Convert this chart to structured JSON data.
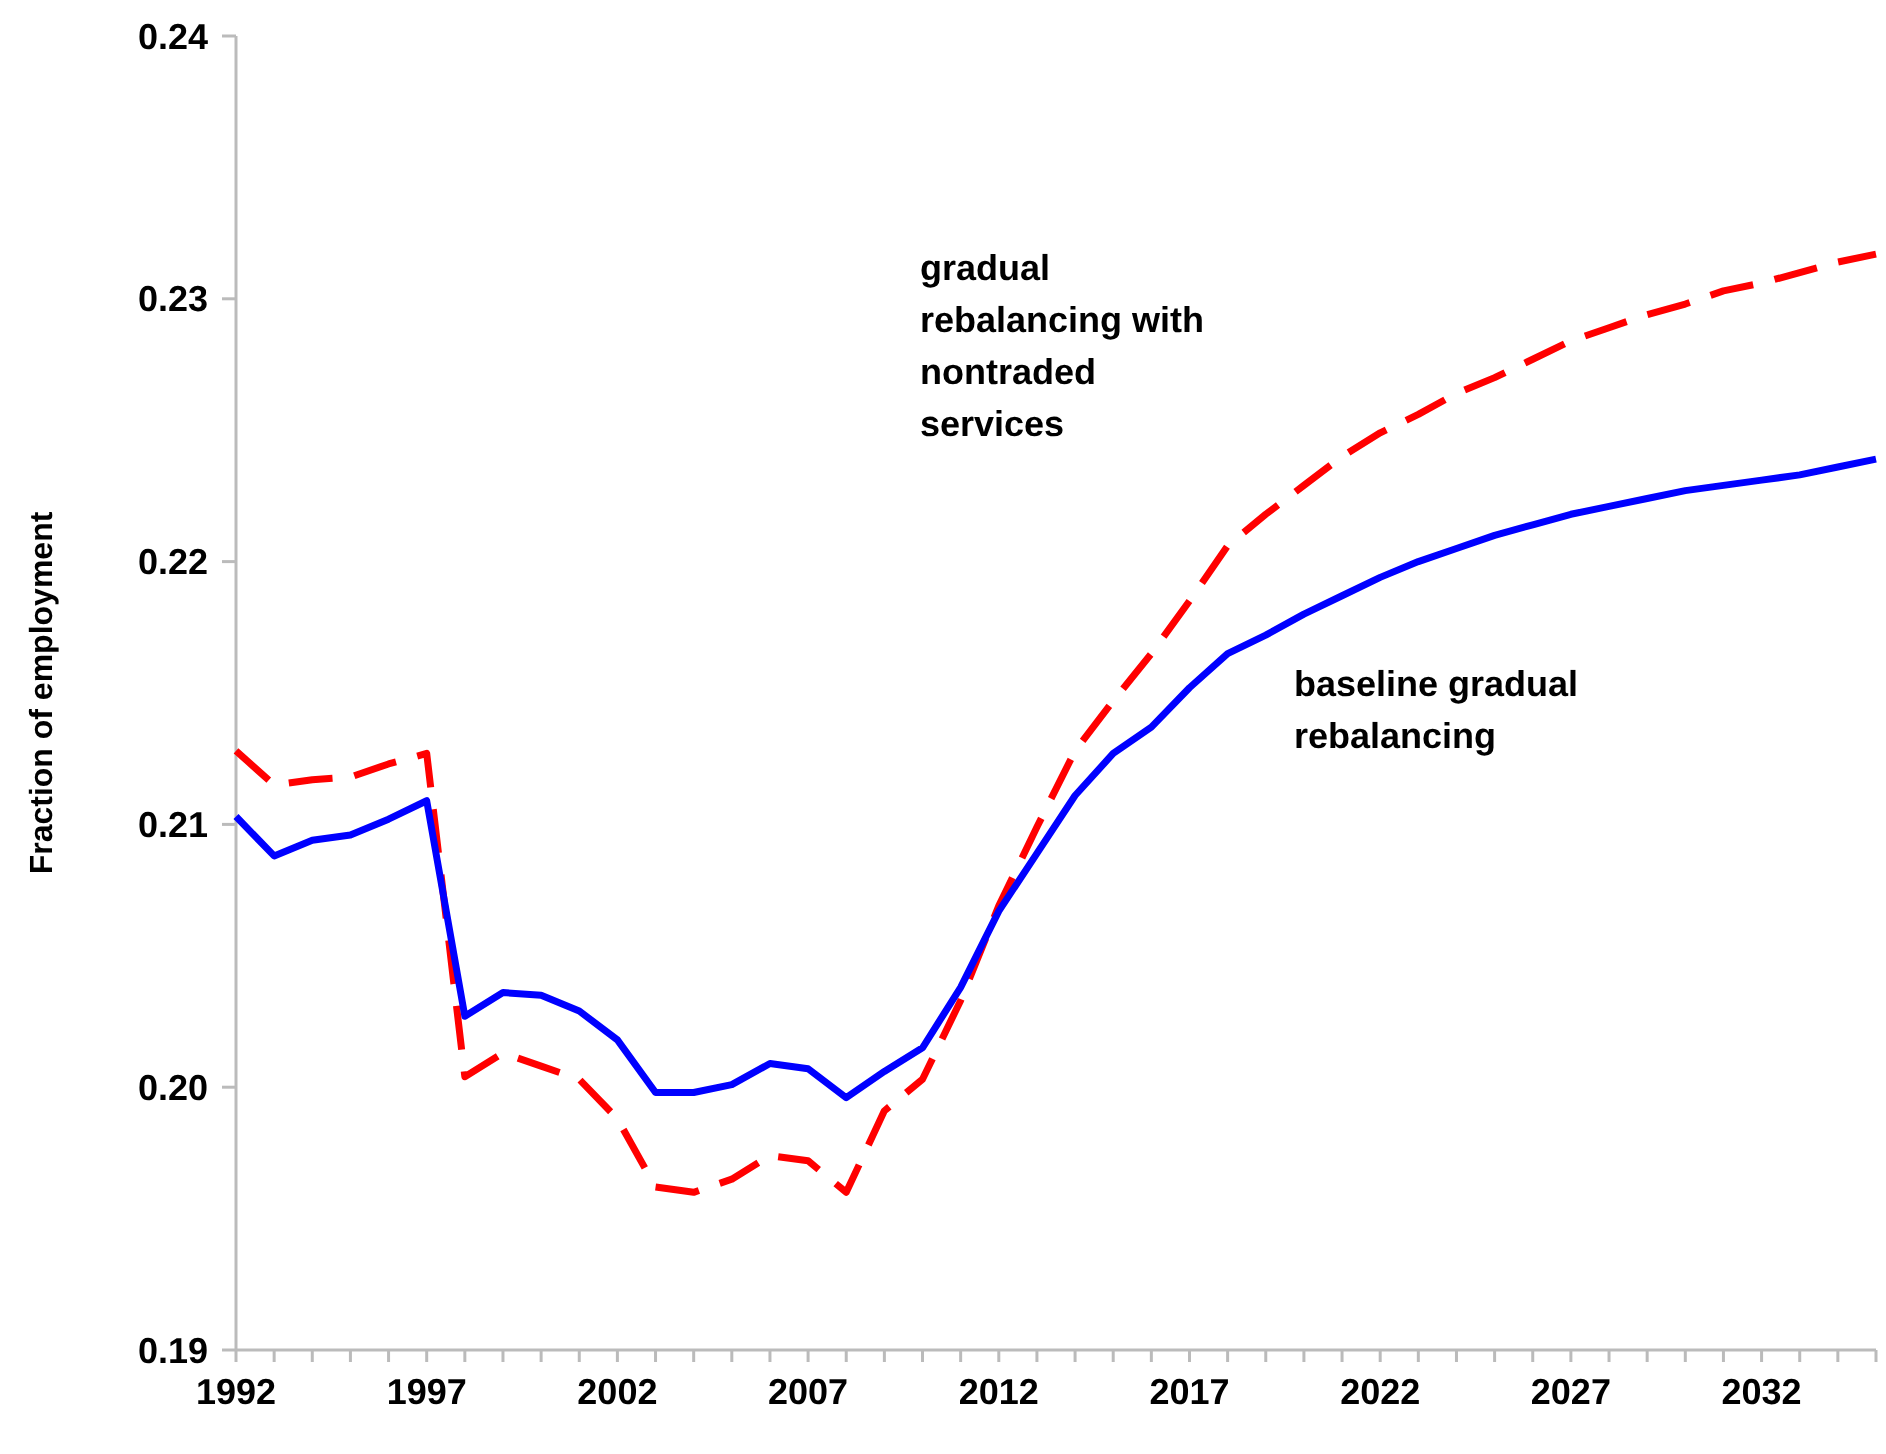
{
  "chart_data": {
    "type": "line",
    "ylabel": "Fraction of employment",
    "x": [
      1992,
      1993,
      1994,
      1995,
      1996,
      1997,
      1998,
      1999,
      2000,
      2001,
      2002,
      2003,
      2004,
      2005,
      2006,
      2007,
      2008,
      2009,
      2010,
      2011,
      2012,
      2013,
      2014,
      2015,
      2016,
      2017,
      2018,
      2019,
      2020,
      2021,
      2022,
      2023,
      2024,
      2025,
      2026,
      2027,
      2028,
      2029,
      2030,
      2031,
      2032,
      2033,
      2034,
      2035
    ],
    "series": [
      {
        "name": "gradual rebalancing with nontraded services",
        "color": "#ff0000",
        "line_style": "dashed",
        "values": [
          0.2128,
          0.2115,
          0.2117,
          0.2118,
          0.2123,
          0.2127,
          0.2004,
          0.2013,
          0.2008,
          0.2003,
          0.1988,
          0.1962,
          0.196,
          0.1965,
          0.1974,
          0.1972,
          0.196,
          0.1991,
          0.2003,
          0.2033,
          0.2069,
          0.2099,
          0.2128,
          0.2147,
          0.2165,
          0.2185,
          0.2206,
          0.2218,
          0.2229,
          0.224,
          0.2249,
          0.2256,
          0.2264,
          0.227,
          0.2277,
          0.2284,
          0.2289,
          0.2294,
          0.2298,
          0.2303,
          0.2306,
          0.231,
          0.2314,
          0.2317
        ]
      },
      {
        "name": "baseline gradual rebalancing",
        "color": "#0000ff",
        "line_style": "solid",
        "values": [
          0.2103,
          0.2088,
          0.2094,
          0.2096,
          0.2102,
          0.2109,
          0.2027,
          0.2036,
          0.2035,
          0.2029,
          0.2018,
          0.1998,
          0.1998,
          0.2001,
          0.2009,
          0.2007,
          0.1996,
          0.2006,
          0.2015,
          0.2038,
          0.2067,
          0.2089,
          0.2111,
          0.2127,
          0.2137,
          0.2152,
          0.2165,
          0.2172,
          0.218,
          0.2187,
          0.2194,
          0.22,
          0.2205,
          0.221,
          0.2214,
          0.2218,
          0.2221,
          0.2224,
          0.2227,
          0.2229,
          0.2231,
          0.2233,
          0.2236,
          0.2239
        ]
      }
    ],
    "xlim": [
      1992,
      2035
    ],
    "xticks": [
      1992,
      {
        "value": 1993,
        "label": null
      },
      {
        "value": 1994,
        "label": null
      },
      {
        "value": 1995,
        "label": null
      },
      {
        "value": 1996,
        "label": null
      },
      1997,
      {
        "value": 1998,
        "label": null
      },
      {
        "value": 1999,
        "label": null
      },
      {
        "value": 2000,
        "label": null
      },
      {
        "value": 2001,
        "label": null
      },
      2002,
      {
        "value": 2003,
        "label": null
      },
      {
        "value": 2004,
        "label": null
      },
      {
        "value": 2005,
        "label": null
      },
      {
        "value": 2006,
        "label": null
      },
      2007,
      {
        "value": 2008,
        "label": null
      },
      {
        "value": 2009,
        "label": null
      },
      {
        "value": 2010,
        "label": null
      },
      {
        "value": 2011,
        "label": null
      },
      2012,
      {
        "value": 2013,
        "label": null
      },
      {
        "value": 2014,
        "label": null
      },
      {
        "value": 2015,
        "label": null
      },
      {
        "value": 2016,
        "label": null
      },
      2017,
      {
        "value": 2018,
        "label": null
      },
      {
        "value": 2019,
        "label": null
      },
      {
        "value": 2020,
        "label": null
      },
      {
        "value": 2021,
        "label": null
      },
      2022,
      {
        "value": 2023,
        "label": null
      },
      {
        "value": 2024,
        "label": null
      },
      {
        "value": 2025,
        "label": null
      },
      {
        "value": 2026,
        "label": null
      },
      2027,
      {
        "value": 2028,
        "label": null
      },
      {
        "value": 2029,
        "label": null
      },
      {
        "value": 2030,
        "label": null
      },
      {
        "value": 2031,
        "label": null
      },
      2032,
      {
        "value": 2033,
        "label": null
      },
      {
        "value": 2034,
        "label": null
      },
      {
        "value": 2035,
        "label": null
      }
    ],
    "ylim": [
      0.19,
      0.24
    ],
    "yticks": [
      0.19,
      {
        "value": 0.2,
        "label": "0.20"
      },
      0.21,
      0.22,
      0.23,
      0.24
    ],
    "grid": false,
    "marker": "none"
  }
}
